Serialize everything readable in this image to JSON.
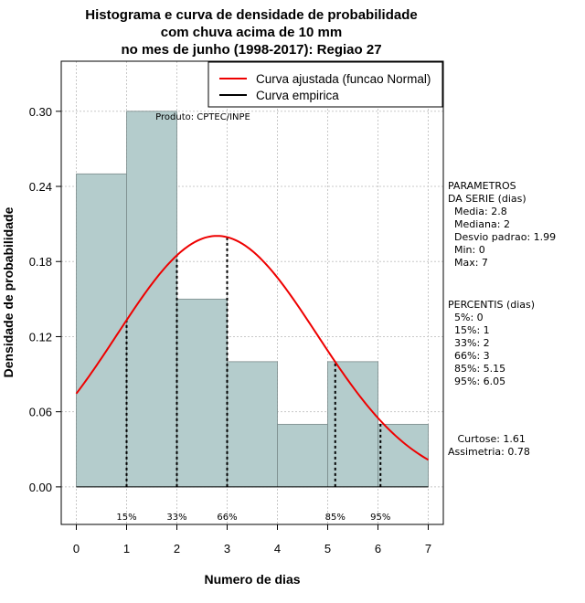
{
  "chart_data": {
    "type": "bar",
    "title_lines": [
      "Histograma e curva de densidade de probabilidade",
      "com chuva acima de 10 mm",
      "no mes de junho (1998-2017): Regiao 27"
    ],
    "xlabel": "Numero de dias",
    "ylabel": "Densidade de probabilidade",
    "xlim": [
      -0.3,
      7.3
    ],
    "ylim": [
      -0.03,
      0.34
    ],
    "xticks": [
      0,
      1,
      2,
      3,
      4,
      5,
      6,
      7
    ],
    "yticks": [
      0.0,
      0.06,
      0.12,
      0.18,
      0.24,
      0.3
    ],
    "ytick_labels": [
      "0.00",
      "0.06",
      "0.12",
      "0.18",
      "0.24",
      "0.30"
    ],
    "grid": true,
    "histogram": {
      "bin_edges": [
        0,
        1,
        2,
        3,
        4,
        5,
        6,
        7
      ],
      "densities": [
        0.25,
        0.3,
        0.15,
        0.1,
        0.05,
        0.1,
        0.05
      ],
      "color": "#b4cccc"
    },
    "normal_curve": {
      "name": "Curva ajustada (funcao Normal)",
      "mean": 2.8,
      "sd": 1.99,
      "color": "#ee0000"
    },
    "empirical_curve": {
      "name": "Curva empirica",
      "color": "#000000"
    },
    "percentile_markers": [
      {
        "label": "15%",
        "x": 1
      },
      {
        "label": "33%",
        "x": 2
      },
      {
        "label": "66%",
        "x": 3
      },
      {
        "label": "85%",
        "x": 5.15
      },
      {
        "label": "95%",
        "x": 6.05
      }
    ],
    "annotation": "Produto: CPTEC/INPE",
    "legend_position": "top-right"
  },
  "sidebar": {
    "parametros_lines": [
      "PARAMETROS",
      "DA SERIE (dias)",
      "  Media: 2.8",
      "  Mediana: 2",
      "  Desvio padrao: 1.99",
      "  Min: 0",
      "  Max: 7"
    ],
    "percentis_lines": [
      "PERCENTIS (dias)",
      "  5%: 0",
      "  15%: 1",
      "  33%: 2",
      "  66%: 3",
      "  85%: 5.15",
      "  95%: 6.05"
    ],
    "stats_lines": [
      "   Curtose: 1.61",
      "Assimetria: 0.78"
    ]
  }
}
